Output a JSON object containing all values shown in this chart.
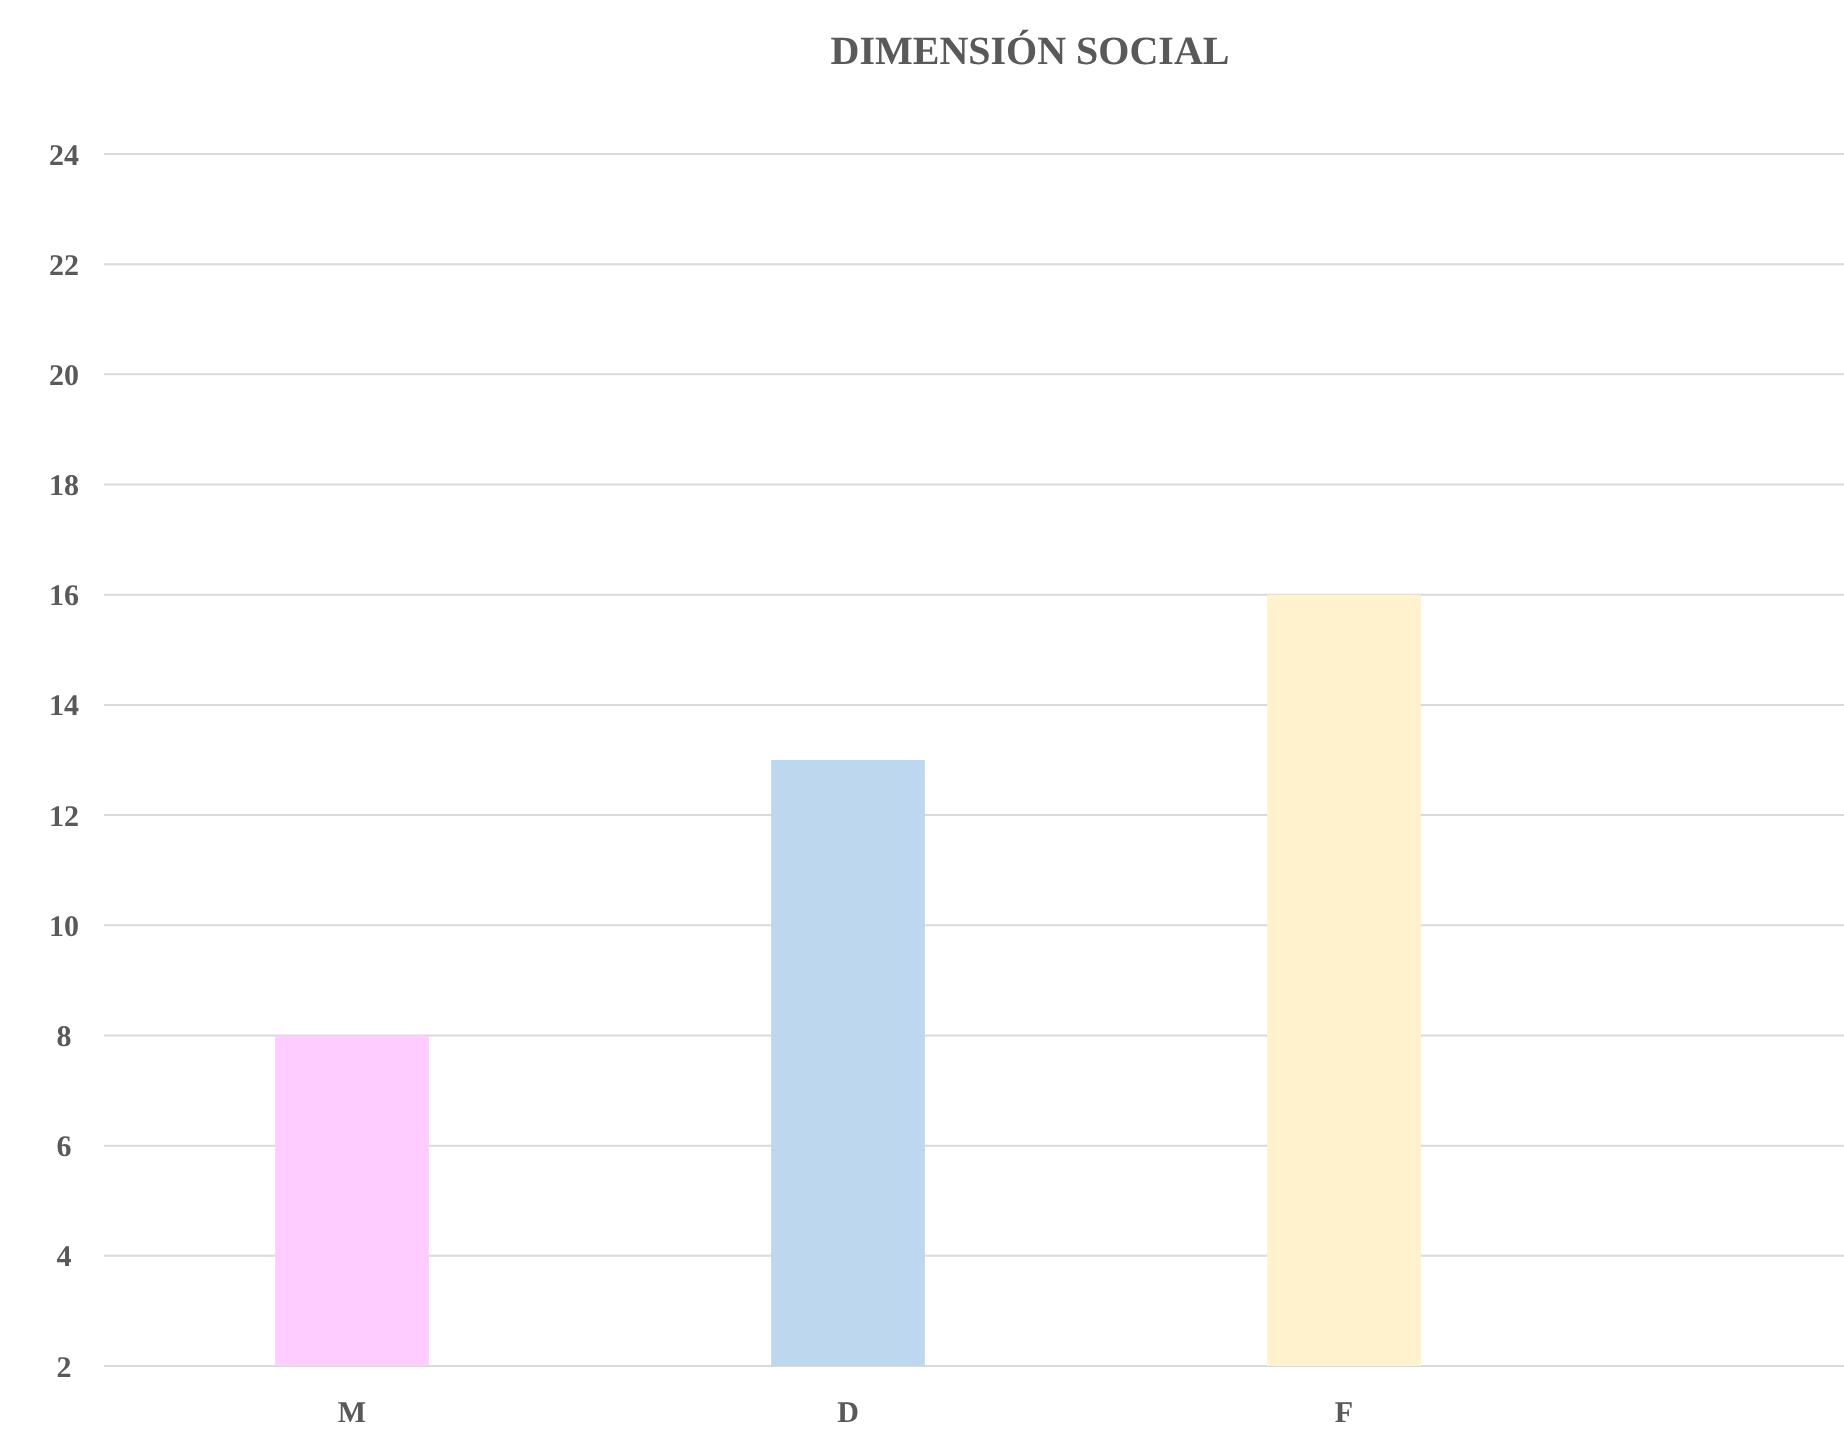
{
  "chart_data": {
    "type": "bar",
    "title": "DIMENSIÓN SOCIAL",
    "categories": [
      "M",
      "D",
      "F"
    ],
    "values": [
      8,
      13,
      16
    ],
    "colors": [
      "#ffccff",
      "#bdd7ee",
      "#fff2cc"
    ],
    "ylim": [
      2,
      24
    ],
    "yticks": [
      2,
      4,
      6,
      8,
      10,
      12,
      14,
      16,
      18,
      20,
      22,
      24
    ],
    "grid": "y"
  }
}
